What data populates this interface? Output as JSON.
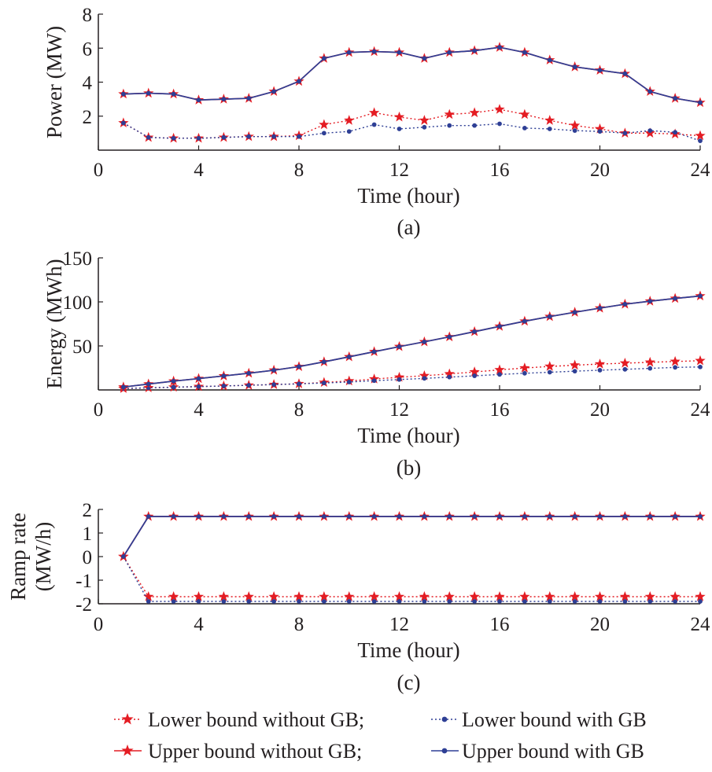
{
  "colors": {
    "without_gb": "#e41c23",
    "with_gb": "#2e3f95",
    "axis": "#231f20"
  },
  "legend": {
    "lower_without": "Lower bound without GB;",
    "lower_with": "Lower bound with GB",
    "upper_without": "Upper bound without GB;",
    "upper_with": "Upper bound with GB"
  },
  "chart_data": [
    {
      "type": "line",
      "panel": "(a)",
      "xlabel": "Time (hour)",
      "ylabel": "Power (MW)",
      "xlim": [
        0,
        24
      ],
      "ylim": [
        0,
        8
      ],
      "xticks": [
        0,
        4,
        8,
        12,
        16,
        20,
        24
      ],
      "yticks": [
        2,
        4,
        6,
        8
      ],
      "x": [
        1,
        2,
        3,
        4,
        5,
        6,
        7,
        8,
        9,
        10,
        11,
        12,
        13,
        14,
        15,
        16,
        17,
        18,
        19,
        20,
        21,
        22,
        23,
        24
      ],
      "series": [
        {
          "name": "Lower bound without GB",
          "style": "dotted-star",
          "values": [
            1.6,
            0.75,
            0.7,
            0.7,
            0.75,
            0.8,
            0.8,
            0.85,
            1.5,
            1.75,
            2.2,
            1.95,
            1.75,
            2.1,
            2.2,
            2.4,
            2.1,
            1.75,
            1.45,
            1.25,
            1.0,
            1.0,
            0.95,
            0.85
          ]
        },
        {
          "name": "Lower bound with GB",
          "style": "dotted-dot",
          "values": [
            1.6,
            0.75,
            0.7,
            0.7,
            0.75,
            0.8,
            0.8,
            0.8,
            1.0,
            1.1,
            1.5,
            1.25,
            1.35,
            1.45,
            1.45,
            1.55,
            1.3,
            1.25,
            1.15,
            1.1,
            1.0,
            1.15,
            1.05,
            0.55
          ]
        },
        {
          "name": "Upper bound without GB",
          "style": "solid-star",
          "values": [
            3.3,
            3.35,
            3.3,
            2.95,
            3.0,
            3.05,
            3.45,
            4.05,
            5.4,
            5.75,
            5.8,
            5.75,
            5.4,
            5.75,
            5.85,
            6.05,
            5.75,
            5.3,
            4.9,
            4.7,
            4.5,
            3.45,
            3.05,
            2.8
          ]
        },
        {
          "name": "Upper bound with GB",
          "style": "solid-dot",
          "values": [
            3.3,
            3.35,
            3.3,
            2.95,
            3.0,
            3.05,
            3.45,
            4.05,
            5.4,
            5.75,
            5.8,
            5.75,
            5.4,
            5.75,
            5.85,
            6.05,
            5.75,
            5.3,
            4.9,
            4.7,
            4.5,
            3.45,
            3.05,
            2.8
          ]
        }
      ]
    },
    {
      "type": "line",
      "panel": "(b)",
      "xlabel": "Time (hour)",
      "ylabel": "Energy (MWh)",
      "xlim": [
        0,
        24
      ],
      "ylim": [
        0,
        150
      ],
      "xticks": [
        0,
        4,
        8,
        12,
        16,
        20,
        24
      ],
      "yticks": [
        50,
        100,
        150
      ],
      "x": [
        1,
        2,
        3,
        4,
        5,
        6,
        7,
        8,
        9,
        10,
        11,
        12,
        13,
        14,
        15,
        16,
        17,
        18,
        19,
        20,
        21,
        22,
        23,
        24
      ],
      "series": [
        {
          "name": "Lower bound without GB",
          "style": "dotted-star",
          "values": [
            1.6,
            2.4,
            3.1,
            3.8,
            4.5,
            5.3,
            6.1,
            7.0,
            8.5,
            10.2,
            12.4,
            14.4,
            16.1,
            18.2,
            20.4,
            22.8,
            24.9,
            26.7,
            28.1,
            29.4,
            30.4,
            31.4,
            32.3,
            33.2
          ]
        },
        {
          "name": "Lower bound with GB",
          "style": "dotted-dot",
          "values": [
            1.6,
            2.4,
            3.1,
            3.8,
            4.5,
            5.3,
            6.1,
            6.9,
            7.9,
            9.0,
            10.5,
            11.8,
            13.1,
            14.6,
            16.0,
            17.6,
            18.9,
            20.1,
            21.3,
            22.4,
            23.4,
            24.5,
            25.6,
            26.1
          ]
        },
        {
          "name": "Upper bound without GB",
          "style": "solid-star",
          "values": [
            3.3,
            6.7,
            10.0,
            12.9,
            15.9,
            19.0,
            22.4,
            26.5,
            31.9,
            37.6,
            43.4,
            49.2,
            54.6,
            60.3,
            66.2,
            72.2,
            78.0,
            83.3,
            88.2,
            92.9,
            97.4,
            100.8,
            103.9,
            106.7
          ]
        },
        {
          "name": "Upper bound with GB",
          "style": "solid-dot",
          "values": [
            3.3,
            6.7,
            10.0,
            12.9,
            15.9,
            19.0,
            22.4,
            26.5,
            31.9,
            37.6,
            43.4,
            49.2,
            54.6,
            60.3,
            66.2,
            72.2,
            78.0,
            83.3,
            88.2,
            92.9,
            97.4,
            100.8,
            103.9,
            106.7
          ]
        }
      ]
    },
    {
      "type": "line",
      "panel": "(c)",
      "xlabel": "Time (hour)",
      "ylabel_lines": [
        "Ramp rate",
        "(MW/h)"
      ],
      "xlim": [
        0,
        24
      ],
      "ylim": [
        -2,
        2
      ],
      "xticks": [
        0,
        4,
        8,
        12,
        16,
        20,
        24
      ],
      "yticks": [
        -2,
        -1,
        0,
        1,
        2
      ],
      "x": [
        1,
        2,
        3,
        4,
        5,
        6,
        7,
        8,
        9,
        10,
        11,
        12,
        13,
        14,
        15,
        16,
        17,
        18,
        19,
        20,
        21,
        22,
        23,
        24
      ],
      "series": [
        {
          "name": "Lower bound without GB",
          "style": "dotted-star",
          "values": [
            0,
            -1.7,
            -1.7,
            -1.7,
            -1.7,
            -1.7,
            -1.7,
            -1.7,
            -1.7,
            -1.7,
            -1.7,
            -1.7,
            -1.7,
            -1.7,
            -1.7,
            -1.7,
            -1.7,
            -1.7,
            -1.7,
            -1.7,
            -1.7,
            -1.7,
            -1.7,
            -1.7
          ]
        },
        {
          "name": "Lower bound with GB",
          "style": "dotted-dot",
          "values": [
            0,
            -1.9,
            -1.9,
            -1.9,
            -1.9,
            -1.9,
            -1.9,
            -1.9,
            -1.9,
            -1.9,
            -1.9,
            -1.9,
            -1.9,
            -1.9,
            -1.9,
            -1.9,
            -1.9,
            -1.9,
            -1.9,
            -1.9,
            -1.9,
            -1.9,
            -1.9,
            -1.9
          ]
        },
        {
          "name": "Upper bound without GB",
          "style": "solid-star",
          "values": [
            0,
            1.7,
            1.7,
            1.7,
            1.7,
            1.7,
            1.7,
            1.7,
            1.7,
            1.7,
            1.7,
            1.7,
            1.7,
            1.7,
            1.7,
            1.7,
            1.7,
            1.7,
            1.7,
            1.7,
            1.7,
            1.7,
            1.7,
            1.7
          ]
        },
        {
          "name": "Upper bound with GB",
          "style": "solid-dot",
          "values": [
            0,
            1.7,
            1.7,
            1.7,
            1.7,
            1.7,
            1.7,
            1.7,
            1.7,
            1.7,
            1.7,
            1.7,
            1.7,
            1.7,
            1.7,
            1.7,
            1.7,
            1.7,
            1.7,
            1.7,
            1.7,
            1.7,
            1.7,
            1.7
          ]
        }
      ]
    }
  ]
}
